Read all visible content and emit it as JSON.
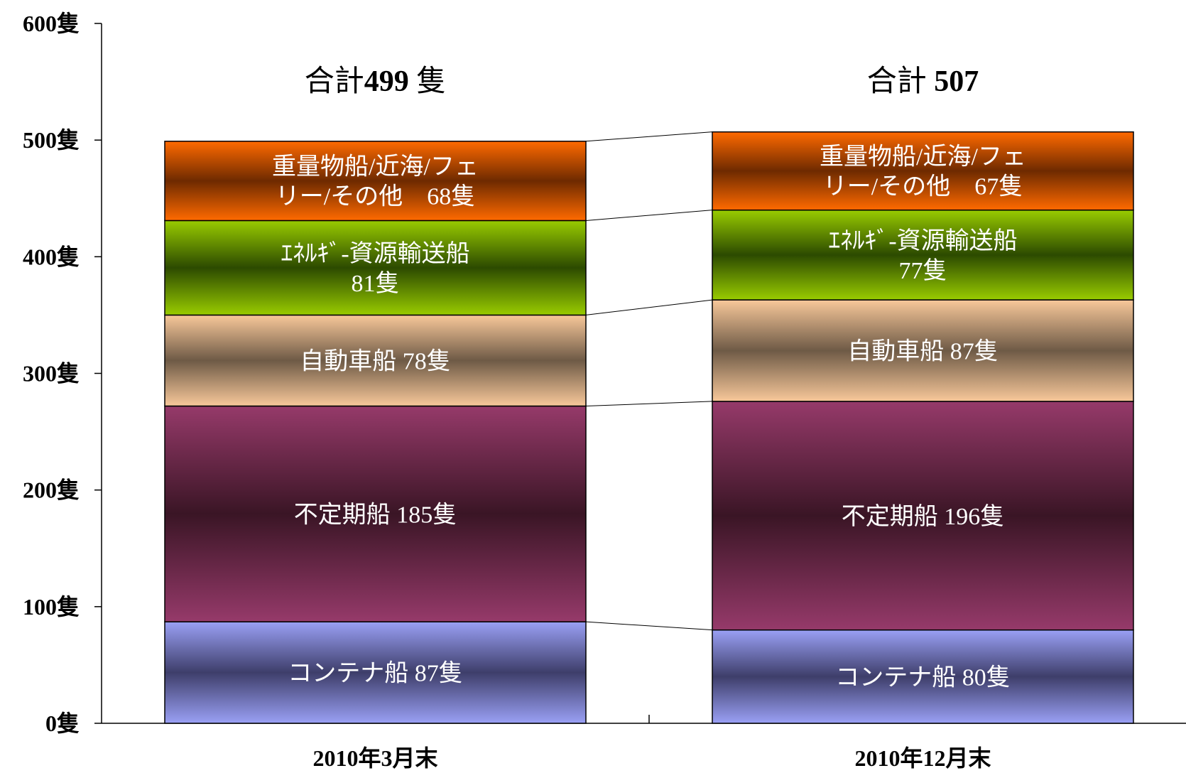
{
  "chart_data": {
    "type": "bar",
    "stacked": true,
    "categories": [
      "2010年3月末",
      "2010年12月末"
    ],
    "ylim": [
      0,
      600
    ],
    "yticks": [
      "0隻",
      "100隻",
      "200隻",
      "300隻",
      "400隻",
      "500隻",
      "600隻"
    ],
    "totals": [
      "合計499 隻",
      "合計 507"
    ],
    "series": [
      {
        "key": "container",
        "values": [
          87,
          80
        ],
        "labels": [
          [
            "コンテナ船 87隻"
          ],
          [
            "コンテナ船 80隻"
          ]
        ],
        "colors": [
          "#9aa0f5",
          "#3e3e6a"
        ]
      },
      {
        "key": "tramp",
        "values": [
          185,
          196
        ],
        "labels": [
          [
            "不定期船 185隻"
          ],
          [
            "不定期船 196隻"
          ]
        ],
        "colors": [
          "#963a6a",
          "#3a1525"
        ]
      },
      {
        "key": "car",
        "values": [
          78,
          87
        ],
        "labels": [
          [
            "自動車船 78隻"
          ],
          [
            "自動車船 87隻"
          ]
        ],
        "colors": [
          "#f8c89a",
          "#6e5a46"
        ]
      },
      {
        "key": "energy",
        "values": [
          81,
          77
        ],
        "labels": [
          [
            "ｴﾈﾙｷﾞ-資源輸送船",
            "81隻"
          ],
          [
            "ｴﾈﾙｷﾞ-資源輸送船",
            "77隻"
          ]
        ],
        "colors": [
          "#99cc00",
          "#2c4a00"
        ]
      },
      {
        "key": "heavy",
        "values": [
          68,
          67
        ],
        "labels": [
          [
            "重量物船/近海/フェ",
            "リー/その他　68隻"
          ],
          [
            "重量物船/近海/フェ",
            "リー/その他　67隻"
          ]
        ],
        "colors": [
          "#ff6a00",
          "#6e2a00"
        ]
      }
    ]
  }
}
